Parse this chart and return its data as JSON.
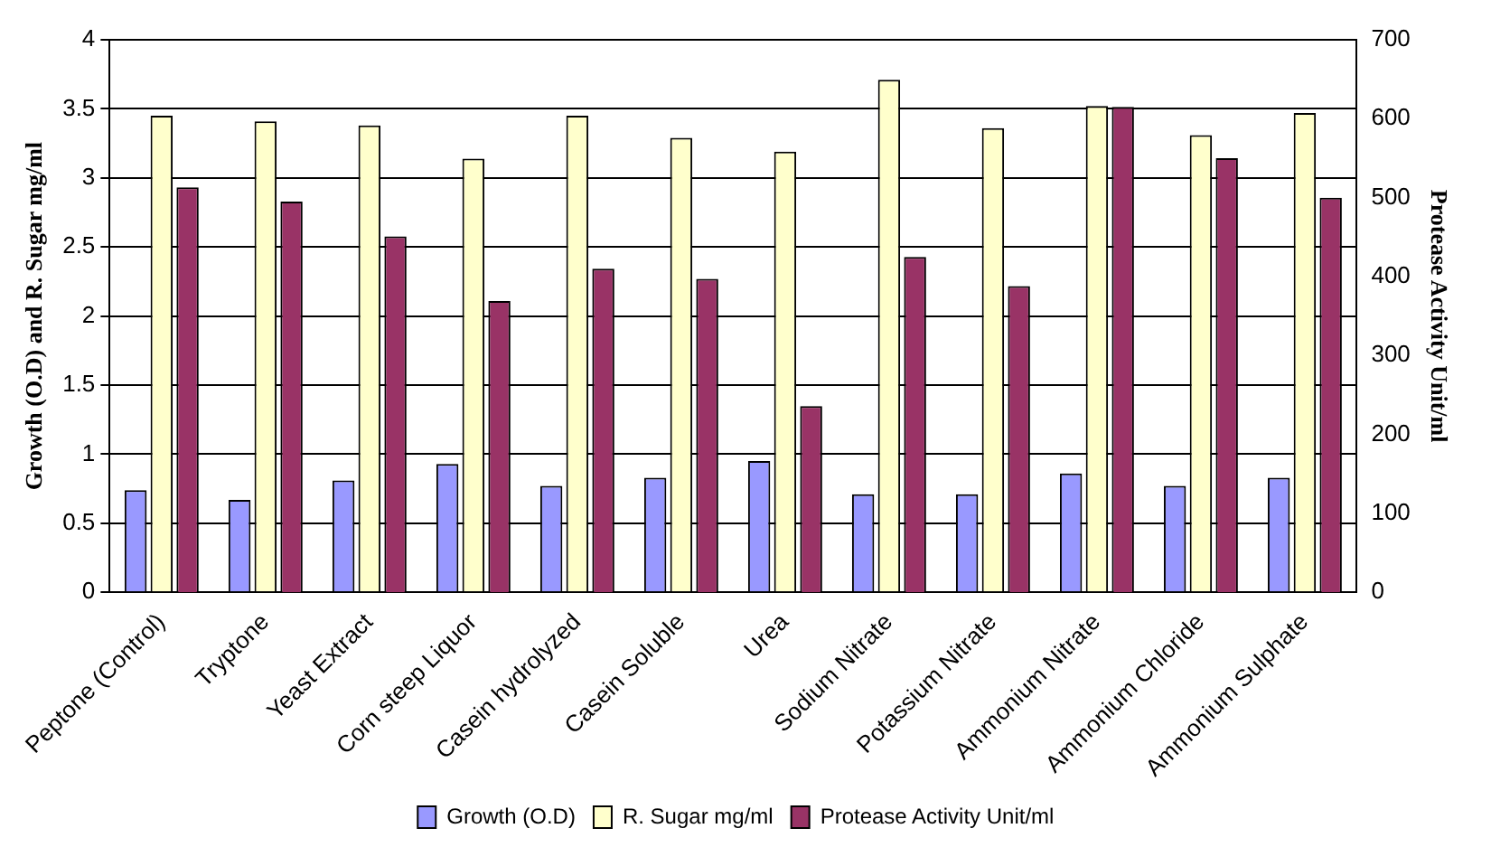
{
  "chart_data": {
    "type": "bar",
    "categories": [
      "Peptone (Control)",
      "Tryptone",
      "Yeast Extract",
      "Corn steep Liquor",
      "Casein hydrolyzed",
      "Casein Soluble",
      "Urea",
      "Sodium Nitrate",
      "Potassium Nitrate",
      "Ammonium Nitrate",
      "Ammonium Chloride",
      "Ammonium Sulphate"
    ],
    "series": [
      {
        "name": "Growth (O.D)",
        "color": "#9999ff",
        "values": [
          0.74,
          0.67,
          0.81,
          0.93,
          0.77,
          0.83,
          0.95,
          0.71,
          0.71,
          0.86,
          0.77,
          0.83
        ]
      },
      {
        "name": "R. Sugar mg/ml",
        "color": "#ffffcc",
        "values": [
          3.45,
          3.41,
          3.38,
          3.14,
          3.45,
          3.29,
          3.19,
          3.71,
          3.36,
          3.52,
          3.31,
          3.47
        ]
      },
      {
        "name": "Protease Activity Unit/ml",
        "color": "#993366",
        "axis": "y2",
        "values": [
          513,
          495,
          451,
          369,
          410,
          397,
          236,
          425,
          388,
          615,
          550,
          500
        ]
      }
    ],
    "ylabel": "Growth (O.D) and R. Sugar mg/ml",
    "y2label": "Protease Activity Unit/ml",
    "ylim": [
      0,
      4
    ],
    "yticks": [
      0,
      0.5,
      1,
      1.5,
      2,
      2.5,
      3,
      3.5,
      4
    ],
    "y2lim": [
      0,
      700
    ],
    "y2ticks": [
      0,
      100,
      200,
      300,
      400,
      500,
      600,
      700
    ],
    "grid": "y",
    "legend": "bottom"
  }
}
